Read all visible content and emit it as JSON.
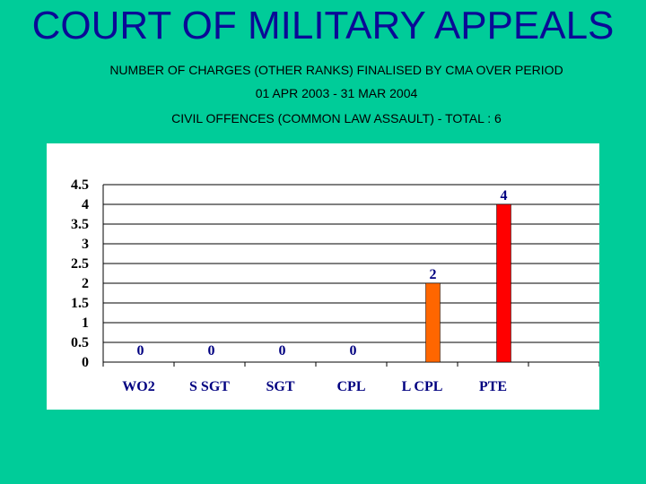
{
  "header": {
    "title": "COURT OF MILITARY APPEALS",
    "subtitle_line1": "NUMBER OF CHARGES (OTHER RANKS) FINALISED BY CMA OVER PERIOD",
    "subtitle_line2": "01 APR 2003 - 31 MAR 2004",
    "subtitle_line3": "CIVIL OFFENCES (COMMON LAW ASSAULT) - TOTAL : 6"
  },
  "chart_data": {
    "type": "bar",
    "categories": [
      "WO2",
      "S SGT",
      "SGT",
      "CPL",
      "L CPL",
      "PTE",
      ""
    ],
    "values": [
      0,
      0,
      0,
      0,
      2,
      4,
      null
    ],
    "data_labels": [
      "0",
      "0",
      "0",
      "0",
      "2",
      "4",
      ""
    ],
    "bar_colors": [
      "#FF6600",
      "#FF6600",
      "#FF6600",
      "#FF6600",
      "#FF6600",
      "#FF0000",
      "#FF0000"
    ],
    "yticks": [
      "0",
      "0.5",
      "1",
      "1.5",
      "2",
      "2.5",
      "3",
      "3.5",
      "4",
      "4.5"
    ],
    "ylim": [
      0,
      4.5
    ],
    "grid": true,
    "legend": "none",
    "title": "",
    "xlabel": "",
    "ylabel": ""
  }
}
